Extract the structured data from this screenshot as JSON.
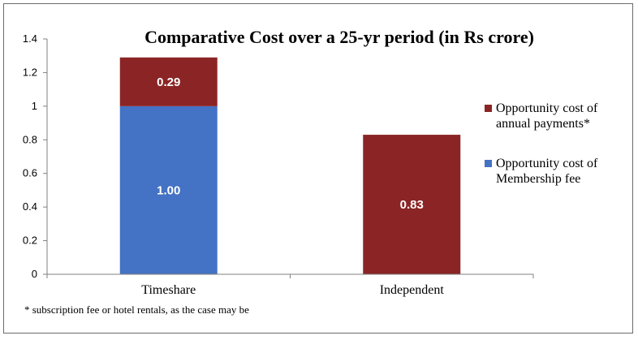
{
  "chart_data": {
    "type": "bar",
    "stacked": true,
    "title": "Comparative Cost over a 25-yr period (in Rs crore)",
    "xlabel": "",
    "ylabel": "",
    "categories": [
      "Timeshare",
      "Independent"
    ],
    "ylim": [
      0,
      1.4
    ],
    "yticks": [
      "0",
      "0.2",
      "0.4",
      "0.6",
      "0.8",
      "1",
      "1.2",
      "1.4"
    ],
    "grid": false,
    "legend_position": "right",
    "series": [
      {
        "name": "Opportunity cost of Membership fee",
        "legend_lines": [
          "Opportunity cost of",
          "Membership fee"
        ],
        "color": "#4472C4",
        "values": [
          1.0,
          0
        ],
        "labels": [
          "1.00",
          ""
        ]
      },
      {
        "name": "Opportunity cost of annual payments*",
        "legend_lines": [
          "Opportunity cost of",
          "annual payments*"
        ],
        "color": "#8B2525",
        "values": [
          0.29,
          0.83
        ],
        "labels": [
          "0.29",
          "0.83"
        ]
      }
    ],
    "footnote": "* subscription fee or hotel rentals, as the case may be"
  }
}
